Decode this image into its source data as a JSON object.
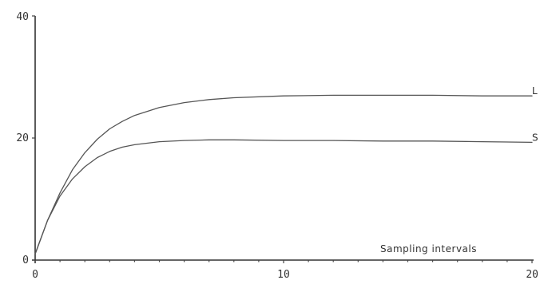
{
  "chart_data": {
    "type": "line",
    "title": "",
    "xlabel": "Sampling intervals",
    "ylabel": "",
    "xlim": [
      0,
      20
    ],
    "ylim": [
      0,
      40
    ],
    "x_ticks": [
      "0",
      "10",
      "20"
    ],
    "y_ticks": [
      "0",
      "20",
      "40"
    ],
    "grid": false,
    "colors": {
      "axis": "#333333",
      "line": "#555555"
    },
    "series": [
      {
        "name": "L",
        "x": [
          0,
          0.5,
          1,
          1.5,
          2,
          2.5,
          3,
          3.5,
          4,
          5,
          6,
          7,
          8,
          10,
          12,
          14,
          16,
          18,
          20
        ],
        "y": [
          1,
          6.5,
          11,
          14.8,
          17.6,
          19.8,
          21.5,
          22.7,
          23.7,
          25.0,
          25.8,
          26.3,
          26.6,
          26.9,
          27.0,
          27.0,
          27.0,
          26.9,
          26.9
        ]
      },
      {
        "name": "S",
        "x": [
          0,
          0.5,
          1,
          1.5,
          2,
          2.5,
          3,
          3.5,
          4,
          5,
          6,
          7,
          8,
          10,
          12,
          14,
          16,
          18,
          20
        ],
        "y": [
          1,
          6.5,
          10.5,
          13.3,
          15.3,
          16.8,
          17.8,
          18.5,
          18.9,
          19.4,
          19.6,
          19.7,
          19.7,
          19.6,
          19.6,
          19.5,
          19.5,
          19.4,
          19.3
        ]
      }
    ]
  }
}
